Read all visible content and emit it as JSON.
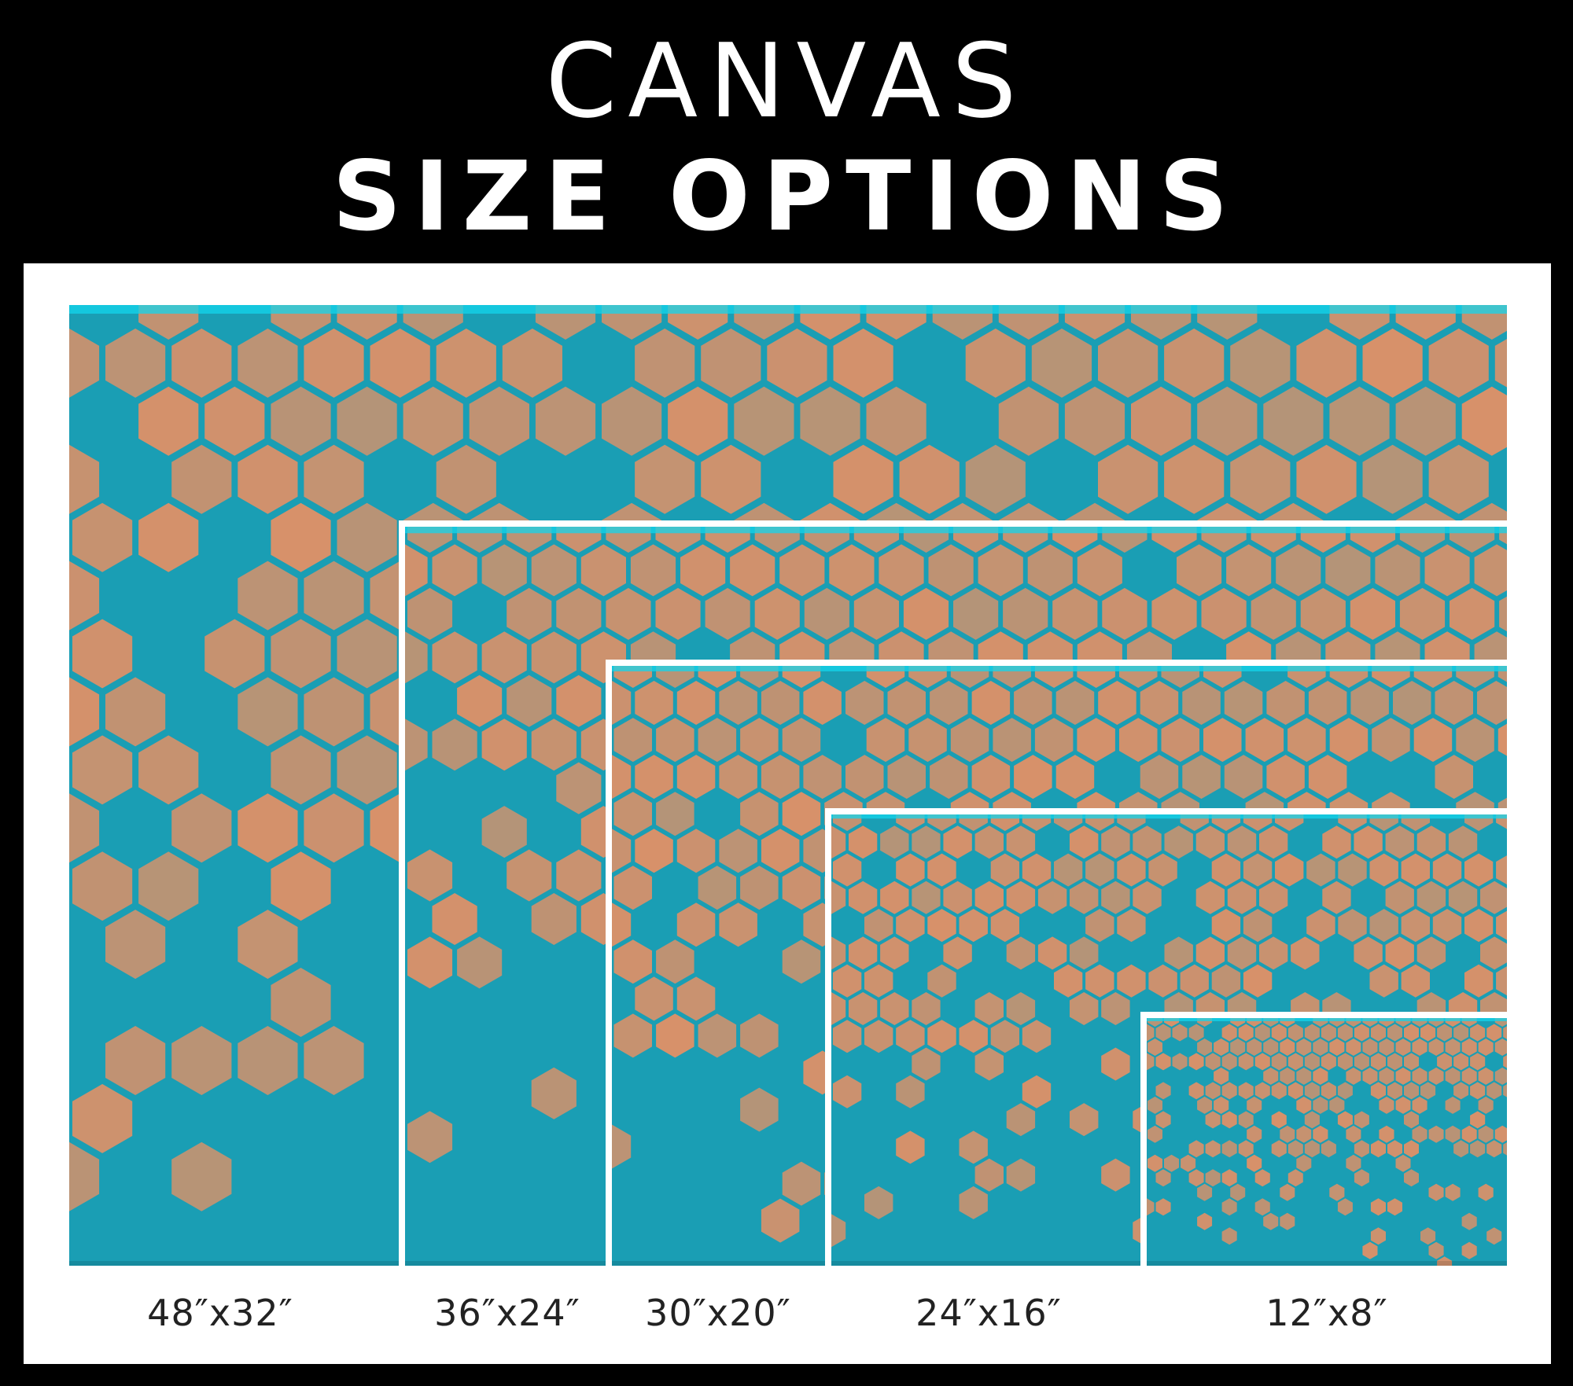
{
  "title": {
    "line1": "CANVAS",
    "line2": "SIZE OPTIONS"
  },
  "colors": {
    "background": "#000000",
    "panel": "#ffffff",
    "canvas_teal": "#1a9eb4",
    "hexagon": "#d7916a",
    "top_edge": "#13d4ec"
  },
  "sizes": [
    {
      "label": "48″x32″"
    },
    {
      "label": "36″x24″"
    },
    {
      "label": "30″x20″"
    },
    {
      "label": "24″x16″"
    },
    {
      "label": "12″x8″"
    }
  ]
}
